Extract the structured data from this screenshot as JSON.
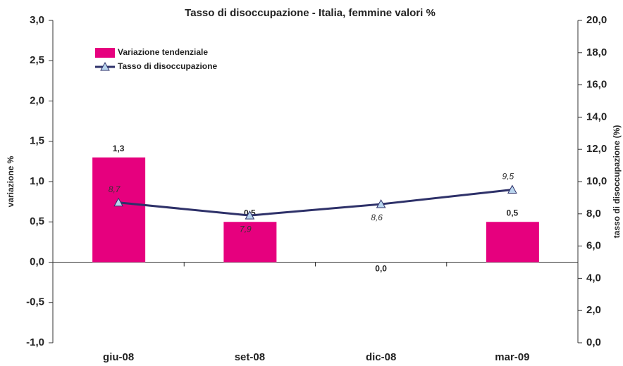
{
  "chart_data": {
    "type": "bar",
    "title": "Tasso di disoccupazione - Italia, femmine valori %",
    "ylabel": "variazione %",
    "y2label": "tasso di disoccupazione (%)",
    "categories": [
      "giu-08",
      "set-08",
      "dic-08",
      "mar-09"
    ],
    "series": [
      {
        "name": "Variazione tendenziale",
        "type": "bar",
        "color": "#e6007e",
        "values": [
          1.3,
          0.5,
          0.0,
          0.5
        ],
        "value_labels": [
          "1,3",
          "0,5",
          "0,0",
          "0,5"
        ]
      },
      {
        "name": "Tasso di disoccupazione",
        "type": "line",
        "axis": "y2",
        "color": "#2e3169",
        "values": [
          8.7,
          7.9,
          8.6,
          9.5
        ],
        "value_labels": [
          "8,7",
          "7,9",
          "8,6",
          "9,5"
        ]
      }
    ],
    "ylim": [
      -1.0,
      3.0
    ],
    "yticks": [
      {
        "value": -1.0,
        "label": "-1,0"
      },
      {
        "value": -0.5,
        "label": "-0,5"
      },
      {
        "value": 0.0,
        "label": "0,0"
      },
      {
        "value": 0.5,
        "label": "0,5"
      },
      {
        "value": 1.0,
        "label": "1,0"
      },
      {
        "value": 1.5,
        "label": "1,5"
      },
      {
        "value": 2.0,
        "label": "2,0"
      },
      {
        "value": 2.5,
        "label": "2,5"
      },
      {
        "value": 3.0,
        "label": "3,0"
      }
    ],
    "y2lim": [
      0.0,
      20.0
    ],
    "y2ticks": [
      {
        "value": 0.0,
        "label": "0,0"
      },
      {
        "value": 2.0,
        "label": "2,0"
      },
      {
        "value": 4.0,
        "label": "4,0"
      },
      {
        "value": 6.0,
        "label": "6,0"
      },
      {
        "value": 8.0,
        "label": "8,0"
      },
      {
        "value": 10.0,
        "label": "10,0"
      },
      {
        "value": 12.0,
        "label": "12,0"
      },
      {
        "value": 14.0,
        "label": "14,0"
      },
      {
        "value": 16.0,
        "label": "16,0"
      },
      {
        "value": 18.0,
        "label": "18,0"
      },
      {
        "value": 20.0,
        "label": "20,0"
      }
    ],
    "legend": "upper left",
    "grid": false
  }
}
